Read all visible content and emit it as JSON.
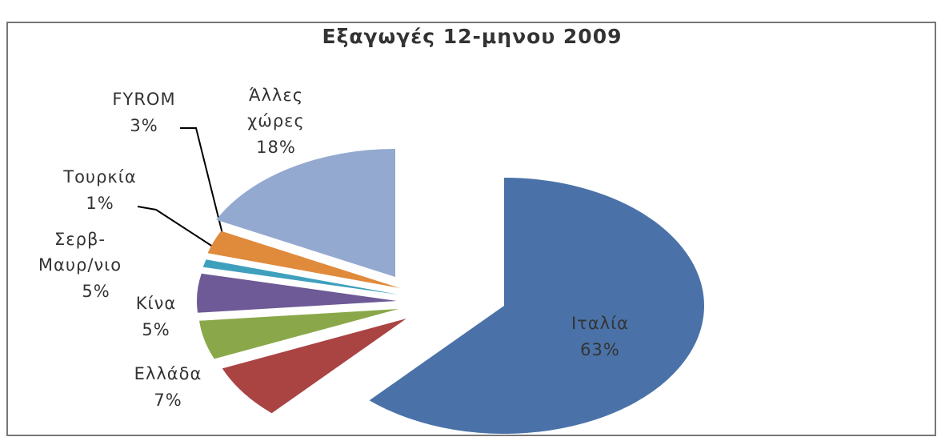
{
  "chart_data": {
    "type": "pie",
    "title": "Εξαγωγές 12-μηνου 2009",
    "categories": [
      "Ιταλία",
      "Ελλάδα",
      "Κίνα",
      "Σερβ-Μαυρ/νιο",
      "Τουρκία",
      "FYROM",
      "Άλλες χώρες"
    ],
    "values": [
      63,
      7,
      5,
      5,
      1,
      3,
      18
    ],
    "value_labels": [
      "63%",
      "7%",
      "5%",
      "5%",
      "1%",
      "3%",
      "18%"
    ],
    "colors": [
      "#4a72a8",
      "#a94442",
      "#8aa84a",
      "#6e5a96",
      "#3fa0bd",
      "#e08a3c",
      "#93a9d0"
    ]
  }
}
